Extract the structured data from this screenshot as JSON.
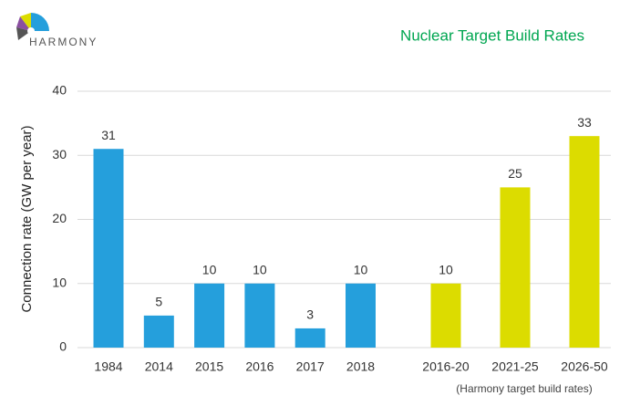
{
  "logo": "HARMONY",
  "chart_data": {
    "type": "bar",
    "title": "Nuclear Target Build Rates",
    "ylabel": "Connection rate (GW per year)",
    "categories": [
      "1984",
      "2014",
      "2015",
      "2016",
      "2017",
      "2018",
      "2016-20",
      "2021-25",
      "2026-50"
    ],
    "values": [
      31,
      5,
      10,
      10,
      3,
      10,
      10,
      25,
      33
    ],
    "colors": [
      "#259fdc",
      "#259fdc",
      "#259fdc",
      "#259fdc",
      "#259fdc",
      "#259fdc",
      "#dcdc00",
      "#dcdc00",
      "#dcdc00"
    ],
    "annotation": "(Harmony target build rates)",
    "ylim": [
      0,
      40
    ],
    "yticks": [
      0,
      10,
      20,
      30,
      40
    ],
    "grid": true
  }
}
